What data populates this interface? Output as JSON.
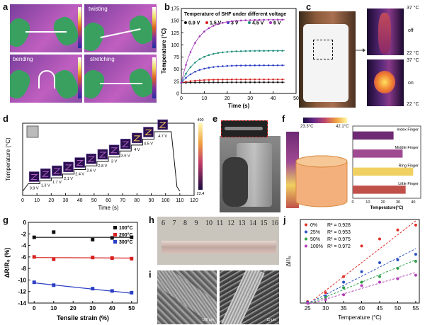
{
  "panel_labels": {
    "a": "a",
    "b": "b",
    "c": "c",
    "d": "d",
    "e": "e",
    "f": "f",
    "g": "g",
    "h": "h",
    "i": "i",
    "j": "j"
  },
  "panel_a": {
    "states": [
      "twisting",
      "bending",
      "stretching"
    ]
  },
  "panel_c": {
    "max_temp": "37 °C",
    "min_temp": "22 °C",
    "off_label": "off",
    "on_label": "on"
  },
  "panel_e": {},
  "panel_f": {
    "scale_min": "23.3°C",
    "scale_max": "42.1°C"
  },
  "panel_h": {
    "ruler_marks": [
      "6",
      "7",
      "8",
      "9",
      "10",
      "11",
      "12",
      "13",
      "14",
      "15",
      "16"
    ]
  },
  "panel_i": {
    "scale1": "100 μm",
    "scale2": "10 μm"
  },
  "chart_data": [
    {
      "id": "b",
      "type": "line",
      "title": "Temperature of SHF under different voltage",
      "xlabel": "Time (s)",
      "ylabel": "Temperature (°C)",
      "xlim": [
        0,
        50
      ],
      "ylim": [
        0,
        175
      ],
      "xticks": [
        0,
        10,
        20,
        30,
        40,
        50
      ],
      "yticks": [
        0,
        25,
        50,
        75,
        100,
        125,
        150,
        175
      ],
      "series": [
        {
          "name": "0.9 V",
          "color": "#111111",
          "plateau": 23
        },
        {
          "name": "1.5 V",
          "color": "#d62020",
          "plateau": 29
        },
        {
          "name": "3 V",
          "color": "#2b3fc4",
          "plateau": 58
        },
        {
          "name": "4.5 V",
          "color": "#1f8f7a",
          "plateau": 88
        },
        {
          "name": "6 V",
          "color": "#9b2fb5",
          "plateau": 152
        }
      ]
    },
    {
      "id": "d",
      "type": "line",
      "xlabel": "Time (s)",
      "ylabel": "Temperature (°C)",
      "xlim": [
        0,
        120
      ],
      "xticks": [
        0,
        10,
        20,
        30,
        40,
        50,
        60,
        70,
        80,
        90,
        100,
        110,
        120
      ],
      "colorbar": {
        "max": "400",
        "min": "22.4"
      },
      "steps": [
        {
          "label": "0.9 V",
          "t0": 4,
          "t1": 12,
          "level": 1.0
        },
        {
          "label": "1.3 V",
          "t0": 12,
          "t1": 20,
          "level": 1.4
        },
        {
          "label": "1.7 V",
          "t0": 20,
          "t1": 28,
          "level": 1.8
        },
        {
          "label": "2.1 V",
          "t0": 28,
          "t1": 36,
          "level": 2.3
        },
        {
          "label": "2.4 V",
          "t0": 36,
          "t1": 44,
          "level": 2.9
        },
        {
          "label": "2.6 V",
          "t0": 44,
          "t1": 52,
          "level": 3.4
        },
        {
          "label": "2.8 V",
          "t0": 52,
          "t1": 60,
          "level": 4.0
        },
        {
          "label": "3 V",
          "t0": 60,
          "t1": 68,
          "level": 4.6
        },
        {
          "label": "3.6 V",
          "t0": 68,
          "t1": 76,
          "level": 5.4
        },
        {
          "label": "4 V",
          "t0": 76,
          "t1": 84,
          "level": 6.2
        },
        {
          "label": "4.5 V",
          "t0": 84,
          "t1": 92,
          "level": 7.0
        },
        {
          "label": "4.7 V",
          "t0": 92,
          "t1": 104,
          "level": 8.0
        }
      ]
    },
    {
      "id": "f",
      "type": "bar",
      "orientation": "horizontal",
      "xlabel": "Temperature(°C)",
      "xlim": [
        0,
        45
      ],
      "xticks": [
        0,
        10,
        20,
        30,
        40
      ],
      "categories": [
        "Index Finger",
        "Middle Finger",
        "Ring Finger",
        "Little Finger"
      ],
      "values": [
        27,
        33,
        40,
        35
      ],
      "colors": [
        "#6e2a74",
        "#a04a92",
        "#f0d060",
        "#c0504a"
      ]
    },
    {
      "id": "g",
      "type": "scatter",
      "xlabel": "Tensile strain (%)",
      "ylabel": "ΔR/R₀ (%)",
      "xlim": [
        -3,
        53
      ],
      "ylim": [
        -14,
        0
      ],
      "xticks": [
        0,
        10,
        20,
        30,
        40,
        50
      ],
      "yticks": [
        0,
        -2,
        -4,
        -6,
        -8,
        -10,
        -12,
        -14
      ],
      "x": [
        0,
        10,
        30,
        40,
        50
      ],
      "series": [
        {
          "name": "100°C",
          "color": "#111111",
          "values": [
            -2.6,
            -1.7,
            -3.0,
            -2.7,
            -2.6
          ],
          "fit": [
            -2.6,
            -2.6
          ]
        },
        {
          "name": "200°C",
          "color": "#d62020",
          "values": [
            -6.0,
            -6.4,
            -6.1,
            -6.2,
            -6.3
          ],
          "fit": [
            -6.1,
            -6.2
          ]
        },
        {
          "name": "300°C",
          "color": "#2b3fc4",
          "values": [
            -10.4,
            -10.9,
            -11.5,
            -11.9,
            -12.2
          ],
          "fit": [
            -10.5,
            -12.3
          ]
        }
      ]
    },
    {
      "id": "j",
      "type": "scatter",
      "xlabel": "Temperature (°C)",
      "ylabel": "ΔI/I₀",
      "xlim": [
        23,
        56
      ],
      "ylim": [
        0,
        1.2
      ],
      "xticks": [
        25,
        30,
        35,
        40,
        45,
        50,
        55
      ],
      "series": [
        {
          "name": "0%",
          "r2": "R² = 0.928",
          "color": "#e0302a",
          "x": [
            25,
            30,
            35,
            40,
            45,
            50,
            55
          ],
          "values": [
            0.02,
            0.15,
            0.38,
            0.82,
            0.92,
            1.05,
            1.12
          ],
          "fit": [
            [
              25,
              -0.02
            ],
            [
              55,
              1.18
            ]
          ]
        },
        {
          "name": "25%",
          "r2": "R² = 0.953",
          "color": "#2b4fc4",
          "x": [
            25,
            30,
            35,
            40,
            45,
            50,
            55
          ],
          "values": [
            0.01,
            0.1,
            0.3,
            0.45,
            0.58,
            0.62,
            0.7
          ],
          "fit": [
            [
              25,
              -0.01
            ],
            [
              55,
              0.78
            ]
          ]
        },
        {
          "name": "50%",
          "r2": "R² = 0.975",
          "color": "#2f9f4a",
          "x": [
            25,
            30,
            35,
            40,
            45,
            50,
            55
          ],
          "values": [
            0.0,
            0.08,
            0.22,
            0.3,
            0.38,
            0.5,
            0.6
          ],
          "fit": [
            [
              25,
              -0.02
            ],
            [
              55,
              0.62
            ]
          ]
        },
        {
          "name": "100%",
          "r2": "R² = 0.972",
          "color": "#b03fb5",
          "x": [
            25,
            30,
            35,
            40,
            45,
            50,
            55
          ],
          "values": [
            0.0,
            0.05,
            0.12,
            0.25,
            0.3,
            0.35,
            0.4
          ],
          "fit": [
            [
              25,
              -0.02
            ],
            [
              55,
              0.44
            ]
          ]
        }
      ]
    }
  ]
}
